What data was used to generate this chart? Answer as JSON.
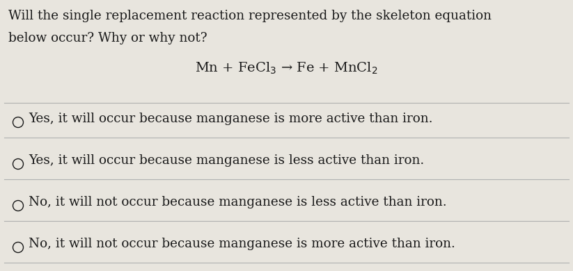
{
  "question_line1": "Will the single replacement reaction represented by the skeleton equation",
  "question_line2": "below occur? Why or why not?",
  "equation": "Mn + FeCl$_3$ → Fe + MnCl$_2$",
  "options": [
    "Yes, it will occur because manganese is more active than iron.",
    "Yes, it will occur because manganese is less active than iron.",
    "No, it will not occur because manganese is less active than iron.",
    "No, it will not occur because manganese is more active than iron."
  ],
  "bg_color": "#e8e5de",
  "text_color": "#1a1a1a",
  "divider_color": "#b0b0b0",
  "font_size_question": 13.2,
  "font_size_equation": 14.0,
  "font_size_option": 13.2,
  "fig_width": 8.23,
  "fig_height": 3.9,
  "dpi": 100
}
